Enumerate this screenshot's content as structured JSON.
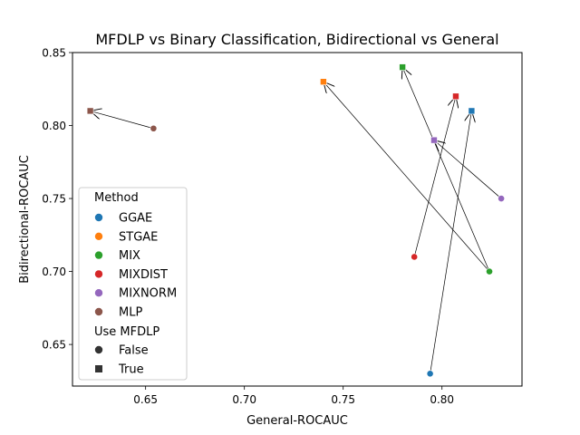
{
  "chart_data": {
    "type": "scatter",
    "title": "MFDLP vs Binary Classification, Bidirectional vs General",
    "xlabel": "General-ROCAUC",
    "ylabel": "Bidirectional-ROCAUC",
    "xlim": [
      0.613,
      0.8405
    ],
    "ylim": [
      0.6215,
      0.85
    ],
    "xticks": [
      "0.65",
      "0.70",
      "0.75",
      "0.80"
    ],
    "xtick_values": [
      0.65,
      0.7,
      0.75,
      0.8
    ],
    "yticks": [
      "0.65",
      "0.70",
      "0.75",
      "0.80",
      "0.85"
    ],
    "ytick_values": [
      0.65,
      0.7,
      0.75,
      0.8,
      0.85
    ],
    "grid": false,
    "legend_placement": "lower-left",
    "series": [
      {
        "name": "GGAE",
        "color": "#1f77b4",
        "points": [
          {
            "x": 0.794,
            "y": 0.63,
            "mfdlp": false
          },
          {
            "x": 0.815,
            "y": 0.81,
            "mfdlp": true
          }
        ]
      },
      {
        "name": "STGAE",
        "color": "#ff7f0e",
        "points": [
          {
            "x": 0.74,
            "y": 0.83,
            "mfdlp": true
          }
        ]
      },
      {
        "name": "MIX",
        "color": "#2ca02c",
        "points": [
          {
            "x": 0.824,
            "y": 0.7,
            "mfdlp": false
          },
          {
            "x": 0.78,
            "y": 0.84,
            "mfdlp": true
          }
        ]
      },
      {
        "name": "MIXDIST",
        "color": "#d62728",
        "points": [
          {
            "x": 0.786,
            "y": 0.71,
            "mfdlp": false
          },
          {
            "x": 0.807,
            "y": 0.82,
            "mfdlp": true
          }
        ]
      },
      {
        "name": "MIXNORM",
        "color": "#9467bd",
        "points": [
          {
            "x": 0.83,
            "y": 0.75,
            "mfdlp": false
          },
          {
            "x": 0.796,
            "y": 0.79,
            "mfdlp": true
          }
        ]
      },
      {
        "name": "MLP",
        "color": "#8c564b",
        "points": [
          {
            "x": 0.654,
            "y": 0.798,
            "mfdlp": false
          },
          {
            "x": 0.622,
            "y": 0.81,
            "mfdlp": true
          }
        ]
      }
    ],
    "arrows": [
      {
        "from": [
          0.794,
          0.63
        ],
        "to": [
          0.815,
          0.81
        ]
      },
      {
        "from": [
          0.824,
          0.7
        ],
        "to": [
          0.74,
          0.83
        ]
      },
      {
        "from": [
          0.824,
          0.7
        ],
        "to": [
          0.78,
          0.84
        ]
      },
      {
        "from": [
          0.786,
          0.71
        ],
        "to": [
          0.807,
          0.82
        ]
      },
      {
        "from": [
          0.83,
          0.75
        ],
        "to": [
          0.796,
          0.79
        ]
      },
      {
        "from": [
          0.654,
          0.798
        ],
        "to": [
          0.622,
          0.81
        ]
      }
    ],
    "legend": {
      "method_title": "Method",
      "methods": [
        "GGAE",
        "STGAE",
        "MIX",
        "MIXDIST",
        "MIXNORM",
        "MLP"
      ],
      "mfdlp_title": "Use MFDLP",
      "mfdlp_items": [
        {
          "label": "False",
          "marker": "circle"
        },
        {
          "label": "True",
          "marker": "square"
        }
      ]
    }
  }
}
